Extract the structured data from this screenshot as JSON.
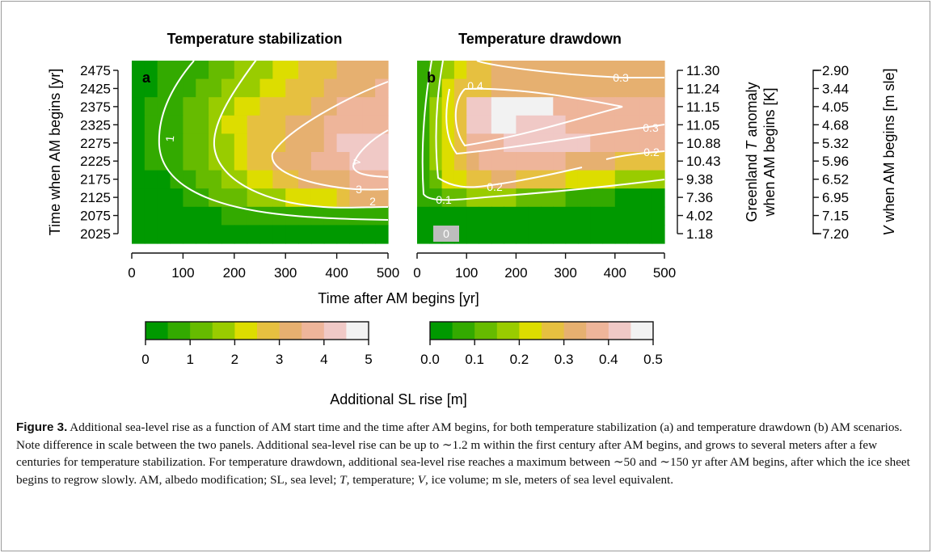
{
  "chart_data": {
    "type": "heatmap",
    "panels": [
      {
        "panel_label": "a",
        "title": "Temperature stabilization",
        "xlabel": "Time after AM begins [yr]",
        "ylabel": "Time when AM begins [yr]",
        "x_ticks": [
          "0",
          "100",
          "200",
          "300",
          "400",
          "500"
        ],
        "y_ticks": [
          "2025",
          "2075",
          "2125",
          "2175",
          "2225",
          "2275",
          "2325",
          "2375",
          "2425",
          "2475"
        ],
        "xlim": [
          0,
          500
        ],
        "contour_labels": [
          "1",
          "2",
          "3",
          "4"
        ]
      },
      {
        "panel_label": "b",
        "title": "Temperature drawdown",
        "xlabel": "Time after AM begins [yr]",
        "x_ticks": [
          "0",
          "100",
          "200",
          "300",
          "400",
          "500"
        ],
        "xlim": [
          0,
          500
        ],
        "contour_labels": [
          "0",
          "0.1",
          "0.2",
          "0.2",
          "0.3",
          "0.3",
          "0.4"
        ],
        "right_axis_1": {
          "label_lines": [
            "Greenland T anomaly",
            "when AM begins [K]"
          ],
          "values": [
            "1.18",
            "4.02",
            "7.36",
            "9.38",
            "10.43",
            "10.88",
            "11.05",
            "11.15",
            "11.24",
            "11.30"
          ]
        },
        "right_axis_2": {
          "label": "V when AM begins [m sle]",
          "values": [
            "7.20",
            "7.15",
            "6.95",
            "6.52",
            "5.96",
            "5.32",
            "4.68",
            "4.05",
            "3.44",
            "2.90"
          ]
        }
      }
    ],
    "colorbars": [
      {
        "ticks": [
          "0",
          "1",
          "2",
          "3",
          "4",
          "5"
        ],
        "range": [
          0,
          5
        ]
      },
      {
        "ticks": [
          "0.0",
          "0.1",
          "0.2",
          "0.3",
          "0.4",
          "0.5"
        ],
        "range": [
          0,
          0.5
        ]
      }
    ],
    "colorbar_label": "Additional SL rise [m]",
    "colors": [
      "#009900",
      "#33aa00",
      "#66bb00",
      "#99cc00",
      "#dddd00",
      "#e6c040",
      "#e6b070",
      "#eeb59a",
      "#f0c9c6",
      "#f2f2f2"
    ],
    "contour_color": "#ffffff",
    "grid": false
  },
  "caption": {
    "label": "Figure 3.",
    "text_parts": [
      "Additional sea-level rise as a function of AM start time and the time after AM begins, for both temperature stabilization (a) and temperature drawdown (b) AM scenarios. Note difference in scale between the two panels. Additional sea-level rise can be up to ∼1.2 m within the first century after AM begins, and grows to several meters after a few centuries for temperature stabilization. For temperature drawdown, additional sea-level rise reaches a maximum between ∼50 and ∼150 yr after AM begins, after which the ice sheet begins to regrow slowly. AM, albedo modification; SL, sea level; ",
      "T",
      ", temperature; ",
      "V",
      ", ice volume; m sle, meters of sea level equivalent."
    ]
  }
}
